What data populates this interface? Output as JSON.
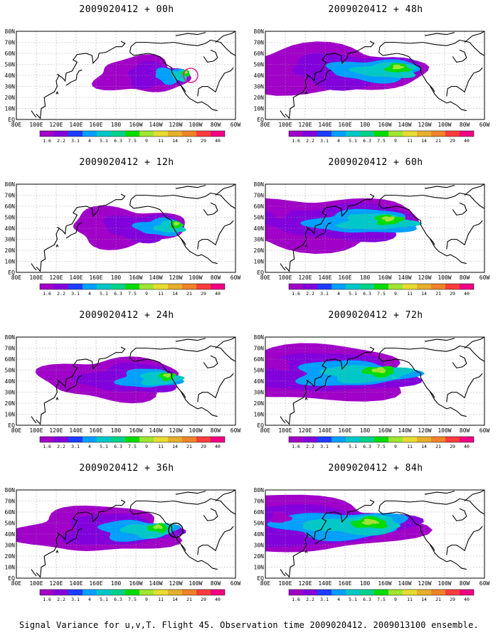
{
  "figure": {
    "footer": "Signal Variance for u,v,T. Flight 45. Observation time 2009020412. 2009013100 ensemble."
  },
  "lat_labels": [
    "80N",
    "70N",
    "60N",
    "50N",
    "40N",
    "30N",
    "20N",
    "10N",
    "EQ"
  ],
  "lon_labels": [
    "80E",
    "100E",
    "120E",
    "140E",
    "160E",
    "180",
    "160W",
    "140W",
    "120W",
    "100W",
    "80W",
    "60W"
  ],
  "colorbar": {
    "labels": [
      "1.6",
      "2.2",
      "3.1",
      "4",
      "5.1",
      "6.3",
      "7.5",
      "9",
      "11",
      "14",
      "21",
      "29",
      "40"
    ],
    "colors": [
      "#a000c8",
      "#8200dc",
      "#1e3cff",
      "#00a0ff",
      "#00c8c8",
      "#00d28c",
      "#00dc00",
      "#a0e632",
      "#e6dc32",
      "#e6af2d",
      "#f08228",
      "#fa3c3c",
      "#f00082"
    ]
  },
  "panels": [
    {
      "title": "2009020412 + 00h",
      "lead": 0,
      "mark": {
        "color": "#e8208a"
      }
    },
    {
      "title": "2009020412 + 48h",
      "lead": 48
    },
    {
      "title": "2009020412 + 12h",
      "lead": 12
    },
    {
      "title": "2009020412 + 60h",
      "lead": 60
    },
    {
      "title": "2009020412 + 24h",
      "lead": 24
    },
    {
      "title": "2009020412 + 72h",
      "lead": 72
    },
    {
      "title": "2009020412 + 36h",
      "lead": 36,
      "mark": {
        "color": "#000000"
      }
    },
    {
      "title": "2009020412 + 84h",
      "lead": 84
    }
  ]
}
